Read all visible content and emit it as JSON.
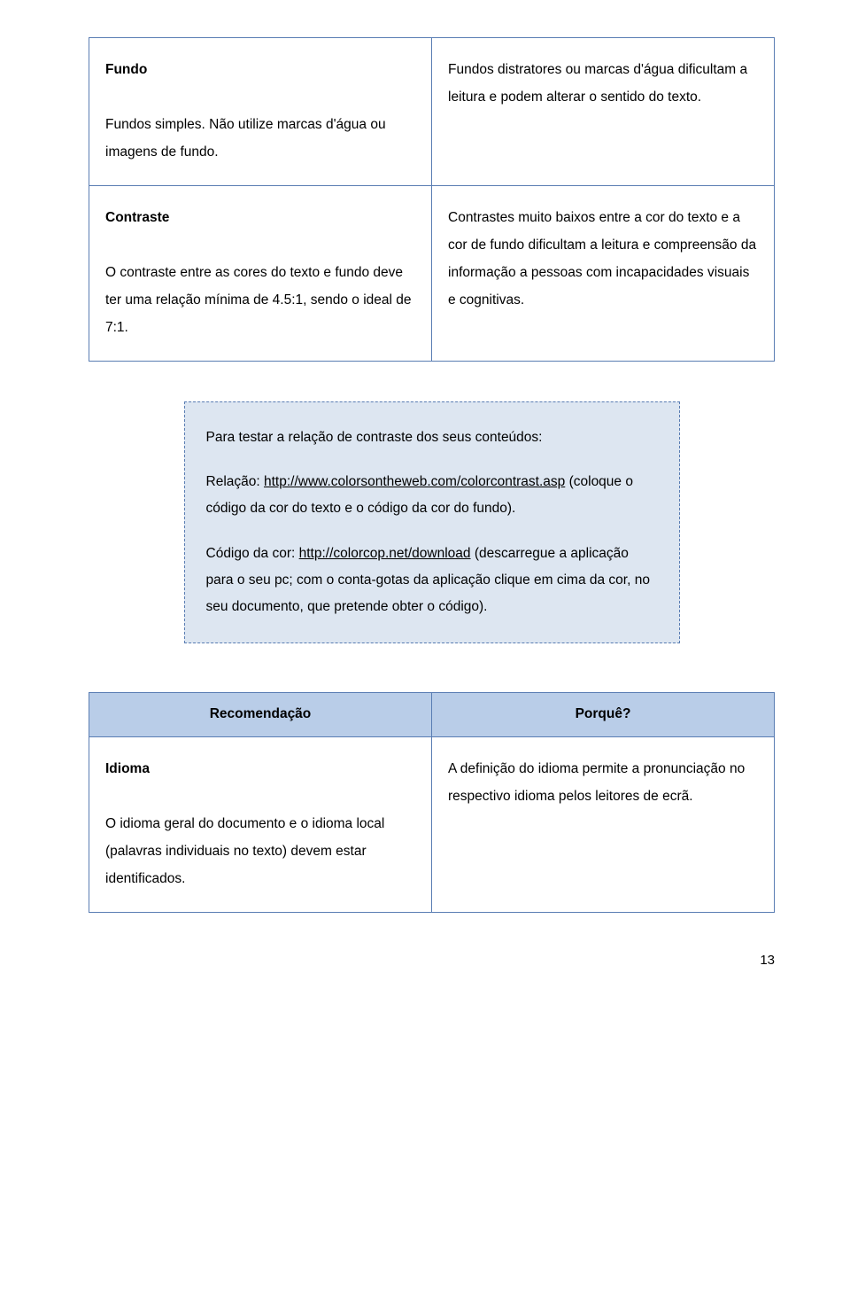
{
  "table1": {
    "r1c1_title": "Fundo",
    "r1c1_body": "Fundos simples. Não utilize marcas d'água ou imagens de fundo.",
    "r1c2": "Fundos distratores ou marcas d'água dificultam a leitura e podem alterar o sentido do texto.",
    "r2c1_title": "Contraste",
    "r2c1_body": "O contraste entre as cores do texto e fundo deve ter uma relação mínima de 4.5:1, sendo o ideal de 7:1.",
    "r2c2": "Contrastes muito baixos entre a cor do texto e a cor de fundo dificultam a leitura e compreensão da informação a pessoas com incapacidades visuais e cognitivas."
  },
  "infobox": {
    "intro": "Para testar a relação de contraste dos seus conteúdos:",
    "rel_label": "Relação: ",
    "rel_link": "http://www.colorsontheweb.com/colorcontrast.asp",
    "rel_after": " (coloque o código da cor do texto e o código da cor do fundo).",
    "code_label": "Código da cor: ",
    "code_link": "http://colorcop.net/download",
    "code_after": " (descarregue a aplicação para o seu pc; com o conta-gotas da aplicação clique em cima da cor, no seu documento, que pretende obter o código)."
  },
  "table2": {
    "h1": "Recomendação",
    "h2": "Porquê?",
    "r1c1_title": "Idioma",
    "r1c1_body": "O idioma geral do documento e o idioma local (palavras individuais no texto) devem estar identificados.",
    "r1c2": "A definição do idioma permite a pronunciação no respectivo idioma pelos leitores de ecrã."
  },
  "page_number": "13"
}
